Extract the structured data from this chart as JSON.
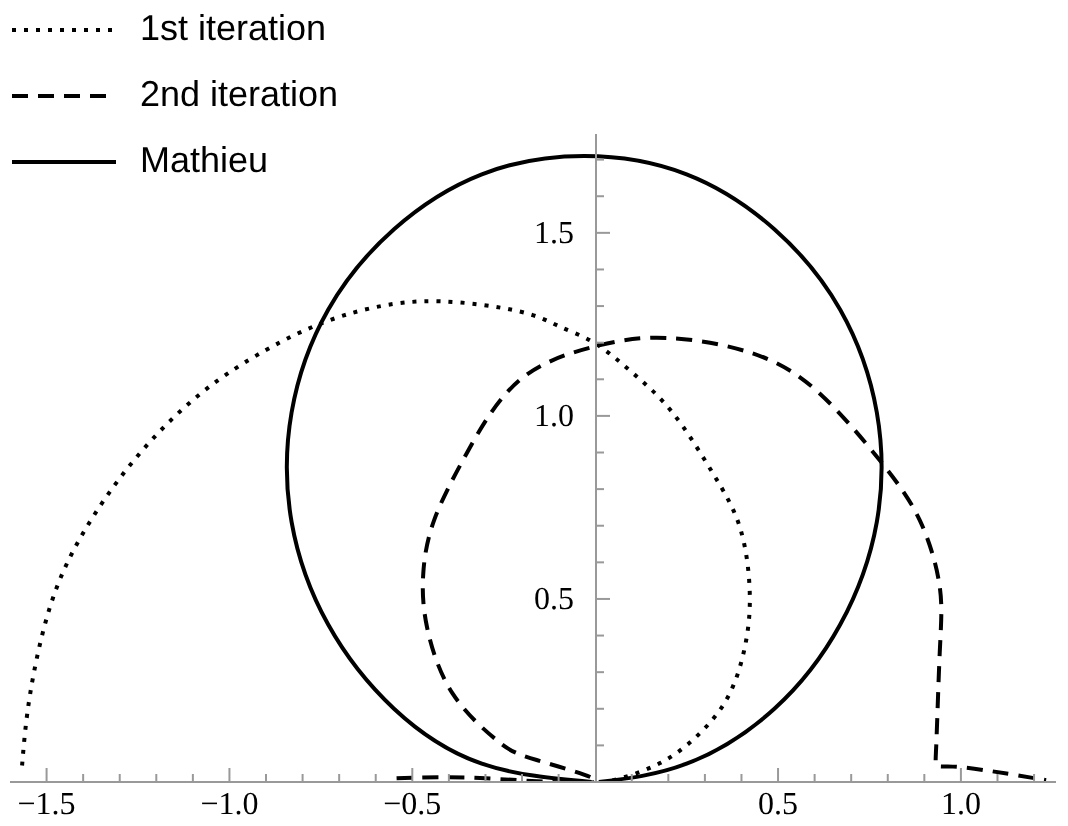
{
  "chart_data": {
    "type": "line",
    "legend": "top left",
    "marker": "none",
    "xlim": [
      -1.6,
      1.26
    ],
    "ylim": [
      0,
      1.77
    ],
    "xticks": [
      {
        "value": -1.5,
        "label": "−1.5"
      },
      {
        "value": -1.4,
        "label": null
      },
      {
        "value": -1.3,
        "label": null
      },
      {
        "value": -1.2,
        "label": null
      },
      {
        "value": -1.1,
        "label": null
      },
      {
        "value": -1,
        "label": "−1.0"
      },
      {
        "value": -0.9,
        "label": null
      },
      {
        "value": -0.8,
        "label": null
      },
      {
        "value": -0.7,
        "label": null
      },
      {
        "value": -0.6,
        "label": null
      },
      {
        "value": -0.5,
        "label": "−0.5"
      },
      {
        "value": -0.4,
        "label": null
      },
      {
        "value": -0.3,
        "label": null
      },
      {
        "value": -0.2,
        "label": null
      },
      {
        "value": -0.1,
        "label": null
      },
      {
        "value": 0.1,
        "label": null
      },
      {
        "value": 0.2,
        "label": null
      },
      {
        "value": 0.3,
        "label": null
      },
      {
        "value": 0.4,
        "label": null
      },
      {
        "value": 0.5,
        "label": "0.5"
      },
      {
        "value": 0.6,
        "label": null
      },
      {
        "value": 0.7,
        "label": null
      },
      {
        "value": 0.8,
        "label": null
      },
      {
        "value": 0.9,
        "label": null
      },
      {
        "value": 1,
        "label": "1.0"
      },
      {
        "value": 1.1,
        "label": null
      },
      {
        "value": 1.2,
        "label": null
      }
    ],
    "yticks": [
      {
        "value": 0.1,
        "label": null
      },
      {
        "value": 0.2,
        "label": null
      },
      {
        "value": 0.3,
        "label": null
      },
      {
        "value": 0.4,
        "label": null
      },
      {
        "value": 0.5,
        "label": "0.5"
      },
      {
        "value": 0.6,
        "label": null
      },
      {
        "value": 0.7,
        "label": null
      },
      {
        "value": 0.8,
        "label": null
      },
      {
        "value": 0.9,
        "label": null
      },
      {
        "value": 1,
        "label": "1.0"
      },
      {
        "value": 1.1,
        "label": null
      },
      {
        "value": 1.2,
        "label": null
      },
      {
        "value": 1.3,
        "label": null
      },
      {
        "value": 1.4,
        "label": null
      },
      {
        "value": 1.5,
        "label": "1.5"
      },
      {
        "value": 1.6,
        "label": null
      },
      {
        "value": 1.7,
        "label": null
      }
    ],
    "series": [
      {
        "name": "1st iteration",
        "color": "#000000",
        "line_style": "dotted",
        "x": [
          -1.567,
          -1.545,
          -1.49,
          -1.4,
          -1.26,
          -1.08,
          -0.9,
          -0.756,
          -0.61,
          -0.425,
          -0.206,
          -0.097,
          0,
          0.104,
          0.213,
          0.322,
          0.395,
          0.422,
          0.413,
          0.368,
          0.286,
          0.176,
          0.05,
          0
        ],
        "values": [
          0.045,
          0.24,
          0.48,
          0.68,
          0.88,
          1.06,
          1.18,
          1.25,
          1.295,
          1.313,
          1.285,
          1.244,
          1.198,
          1.116,
          1.007,
          0.843,
          0.698,
          0.534,
          0.388,
          0.242,
          0.133,
          0.051,
          0.005,
          0
        ]
      },
      {
        "name": "2nd iteration",
        "color": "#000000",
        "line_style": "dashed",
        "x": [
          -0.543,
          -0.3,
          0,
          -0.16,
          -0.27,
          -0.39,
          -0.46,
          -0.47,
          -0.44,
          -0.35,
          -0.206,
          0,
          0.195,
          0.43,
          0.613,
          0.777,
          0.887,
          0.942,
          0.942,
          0.932,
          0.978,
          1.233
        ],
        "values": [
          0.01,
          0.01,
          0,
          0.06,
          0.115,
          0.242,
          0.424,
          0.57,
          0.716,
          0.9,
          1.098,
          1.19,
          1.213,
          1.171,
          1.062,
          0.88,
          0.716,
          0.534,
          0.351,
          0.087,
          0.042,
          0.005
        ]
      },
      {
        "name": "Mathieu",
        "color": "#000000",
        "line_style": "solid",
        "x": [
          0.01,
          0.25,
          0.49,
          0.67,
          0.77,
          0.77,
          0.67,
          0.49,
          0.25,
          -0.03,
          -0.31,
          -0.55,
          -0.73,
          -0.83,
          -0.83,
          -0.73,
          -0.55,
          -0.31,
          -0.01
        ],
        "values": [
          0,
          0.05,
          0.2,
          0.43,
          0.71,
          1.01,
          1.29,
          1.51,
          1.66,
          1.71,
          1.66,
          1.51,
          1.29,
          1.01,
          0.71,
          0.43,
          0.2,
          0.05,
          0
        ]
      }
    ]
  }
}
